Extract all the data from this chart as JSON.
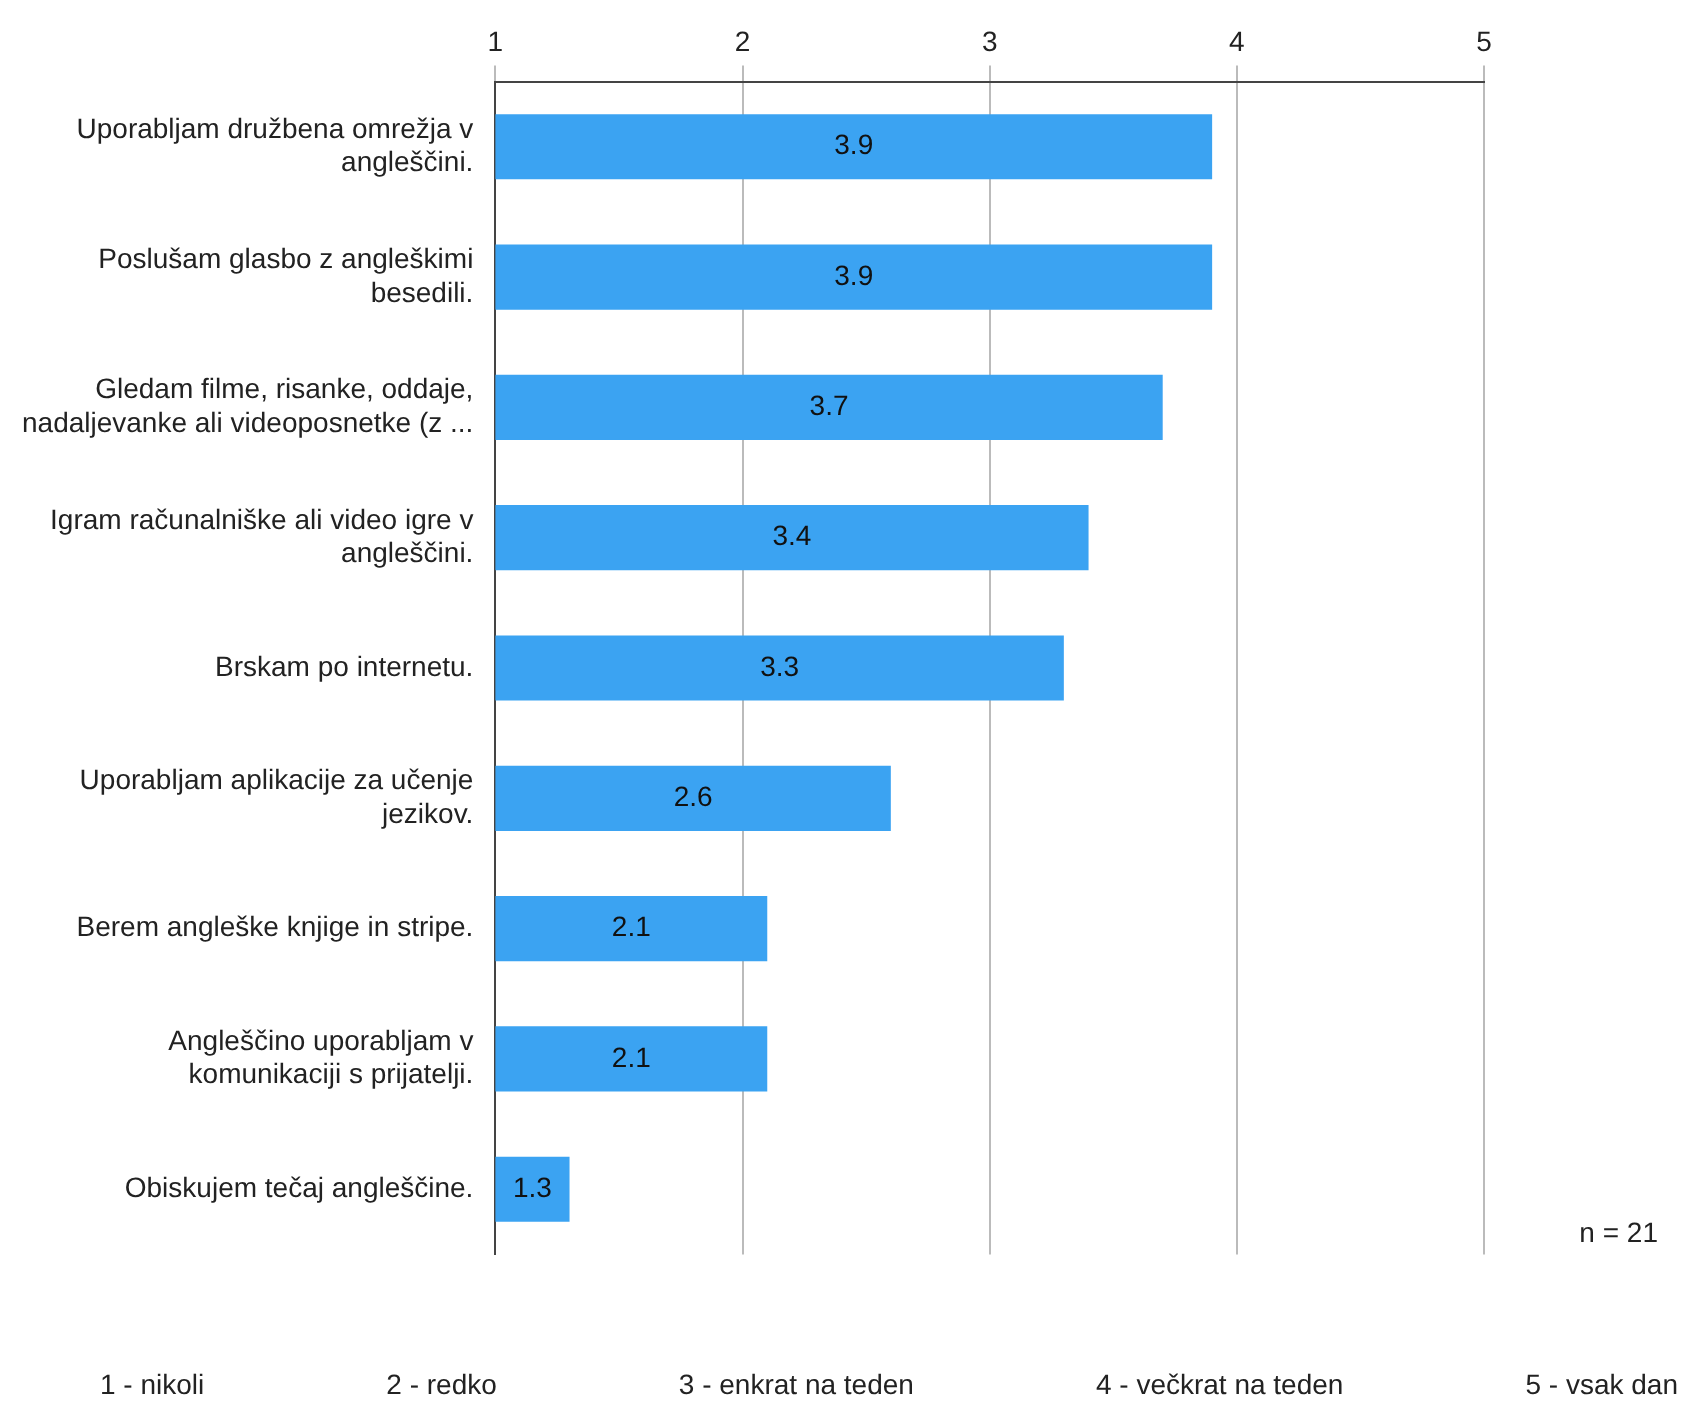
{
  "chart_data": {
    "type": "bar",
    "orientation": "horizontal",
    "categories": [
      "Uporabljam družbena omrežja v angleščini.",
      "Poslušam glasbo z angleškimi besedili.",
      "Gledam filme, risanke, oddaje, nadaljevanke ali videoposnetke (z ...",
      "Igram računalniške ali video igre v angleščini.",
      "Brskam po internetu.",
      "Uporabljam aplikacije za učenje jezikov.",
      "Berem angleške knjige in stripe.",
      "Angleščino uporabljam v komunikaciji s prijatelji.",
      "Obiskujem tečaj angleščine."
    ],
    "values": [
      3.9,
      3.9,
      3.7,
      3.4,
      3.3,
      2.6,
      2.1,
      2.1,
      1.3
    ],
    "color": "#3ba3f2",
    "xlim": [
      1,
      5
    ],
    "xticks": [
      1,
      2,
      3,
      4,
      5
    ],
    "grid": "x",
    "data_labels": true,
    "annotations": [
      "n = 21",
      "1 - nikoli",
      "2 - redko",
      "3 - enkrat na teden",
      "4 - večkrat na teden",
      "5 - vsak dan"
    ]
  }
}
